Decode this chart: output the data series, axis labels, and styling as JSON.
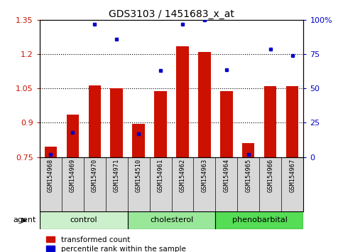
{
  "title": "GDS3103 / 1451683_x_at",
  "samples": [
    "GSM154968",
    "GSM154969",
    "GSM154970",
    "GSM154971",
    "GSM154510",
    "GSM154961",
    "GSM154962",
    "GSM154963",
    "GSM154964",
    "GSM154965",
    "GSM154966",
    "GSM154967"
  ],
  "red_values": [
    0.795,
    0.935,
    1.065,
    1.05,
    0.895,
    1.04,
    1.235,
    1.21,
    1.04,
    0.81,
    1.06,
    1.06
  ],
  "blue_values": [
    2,
    18,
    97,
    86,
    17,
    63,
    97,
    100,
    64,
    2,
    79,
    74
  ],
  "groups": [
    {
      "label": "control",
      "start": 0,
      "end": 4,
      "color": "#ccf0cc"
    },
    {
      "label": "cholesterol",
      "start": 4,
      "end": 8,
      "color": "#99e899"
    },
    {
      "label": "phenobarbital",
      "start": 8,
      "end": 12,
      "color": "#55dd55"
    }
  ],
  "ylim_left": [
    0.75,
    1.35
  ],
  "ylim_right": [
    0,
    100
  ],
  "yticks_left": [
    0.75,
    0.9,
    1.05,
    1.2,
    1.35
  ],
  "yticks_right": [
    0,
    25,
    50,
    75,
    100
  ],
  "bar_color": "#cc1100",
  "dot_color": "#0000cc",
  "background_color": "#ffffff",
  "legend_red": "transformed count",
  "legend_blue": "percentile rank within the sample",
  "agent_label": "agent",
  "gridline_y": [
    0.9,
    1.05,
    1.2
  ],
  "bar_width": 0.55
}
